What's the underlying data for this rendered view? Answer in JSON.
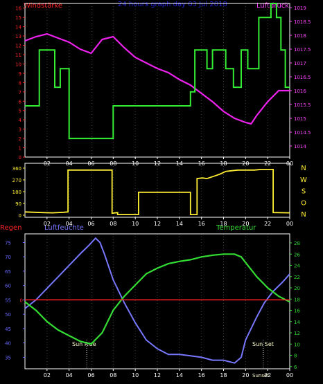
{
  "header": {
    "left_label": "Windstärke",
    "center_title": "24 hours graph day  03 Jul 2018",
    "right_label": "Luftdruck"
  },
  "colors": {
    "wind": "#33ee33",
    "pressure": "#ee22ee",
    "direction": "#ffee33",
    "humidity": "#7777ff",
    "temperature": "#33dd33",
    "rain": "#ff2222",
    "frame": "#ffffff",
    "grid": "#444444",
    "title": "#2222dd",
    "tick_red": "#ff2222",
    "tick_magenta": "#ff44ff",
    "tick_blue": "#6666ff",
    "tick_green": "#33dd33",
    "tick_yellow": "#ffee33",
    "sun_text": "#ffffcc"
  },
  "x_ticks": [
    "02",
    "04",
    "06",
    "08",
    "10",
    "12",
    "14",
    "16",
    "18",
    "20",
    "22",
    "00"
  ],
  "chart_data": [
    {
      "type": "line",
      "panel": "wind_pressure",
      "x_unit": "hour",
      "series": [
        {
          "name": "Windstärke",
          "axis": "left",
          "step": true,
          "x": [
            0,
            1.3,
            1.3,
            2.7,
            2.7,
            3.2,
            3.2,
            4.0,
            4.0,
            8.0,
            8.0,
            15.0,
            15.0,
            15.4,
            15.4,
            16.5,
            16.5,
            17.0,
            17.0,
            18.2,
            18.2,
            18.9,
            18.9,
            19.6,
            19.6,
            20.2,
            20.2,
            21.2,
            21.2,
            22.3,
            22.3,
            22.8,
            22.8,
            23.2,
            23.2,
            23.6,
            23.6,
            24
          ],
          "values": [
            5.5,
            5.5,
            11.5,
            11.5,
            7.5,
            7.5,
            9.5,
            9.5,
            2,
            2,
            5.5,
            5.5,
            7,
            7,
            11.5,
            11.5,
            9.5,
            9.5,
            11.5,
            11.5,
            9.5,
            9.5,
            7.5,
            7.5,
            11.5,
            11.5,
            9.5,
            9.5,
            15,
            15,
            16.5,
            16.5,
            15,
            15,
            11.5,
            11.5,
            7.5,
            7.5
          ],
          "ylim": [
            0,
            16.5
          ]
        },
        {
          "name": "Luftdruck",
          "axis": "right",
          "x": [
            0,
            1,
            2,
            3,
            4,
            5,
            6,
            7,
            8,
            9,
            10,
            11,
            12,
            13,
            14,
            15,
            16,
            17,
            18,
            19,
            20,
            20.5,
            21,
            22,
            23,
            24
          ],
          "values": [
            1017.8,
            1017.95,
            1018.05,
            1017.9,
            1017.75,
            1017.5,
            1017.35,
            1017.85,
            1017.95,
            1017.55,
            1017.2,
            1017.0,
            1016.8,
            1016.65,
            1016.4,
            1016.2,
            1015.9,
            1015.6,
            1015.25,
            1015.0,
            1014.85,
            1014.8,
            1015.1,
            1015.6,
            1016.0,
            1016.0
          ],
          "ylim": [
            1013.6,
            1019.15
          ]
        }
      ],
      "y_ticks_left": [
        0,
        1,
        2,
        3,
        4,
        5,
        6,
        7,
        8,
        9,
        10,
        11,
        12,
        13,
        14,
        15,
        16
      ],
      "y_ticks_right": [
        1014,
        1014.5,
        1015,
        1015.5,
        1016,
        1016.5,
        1017,
        1017.5,
        1018,
        1018.5,
        1019
      ]
    },
    {
      "type": "line",
      "panel": "wind_direction",
      "x_unit": "hour",
      "series": [
        {
          "name": "Windrichtung",
          "step": true,
          "x": [
            0,
            1.5,
            2.5,
            3.5,
            3.9,
            3.9,
            7.9,
            7.9,
            8.4,
            8.4,
            10.3,
            10.3,
            15.0,
            15.0,
            15.6,
            15.6,
            16.1,
            16.5,
            17.2,
            17.7,
            18.2,
            18.7,
            19.3,
            20.2,
            20.8,
            21.4,
            22.5,
            22.5,
            24
          ],
          "values": [
            25,
            20,
            18,
            22,
            25,
            345,
            345,
            15,
            20,
            5,
            5,
            175,
            175,
            5,
            5,
            280,
            285,
            280,
            300,
            315,
            335,
            340,
            345,
            345,
            345,
            350,
            350,
            20,
            18
          ]
        }
      ],
      "ylim": [
        0,
        360
      ],
      "y_ticks": [
        0,
        90,
        180,
        270,
        360
      ],
      "compass_labels": [
        "N",
        "W",
        "S",
        "O",
        "N"
      ]
    },
    {
      "type": "line",
      "panel": "humidity_temperature",
      "x_unit": "hour",
      "series": [
        {
          "name": "Luftfeuchte",
          "axis": "left",
          "x": [
            0,
            1,
            2,
            3,
            4,
            5,
            5.8,
            6.4,
            6.8,
            7.2,
            8,
            9,
            10,
            11,
            12,
            13,
            14,
            15,
            16,
            17,
            18,
            19,
            19.6,
            20,
            21,
            21.7,
            22.5,
            23.3,
            24
          ],
          "values": [
            52,
            55,
            59,
            63,
            67,
            71,
            74,
            76.5,
            75,
            71,
            62,
            54,
            47,
            41,
            38,
            36,
            36,
            35.5,
            35,
            34,
            34,
            33,
            35,
            41,
            49,
            54,
            58,
            61,
            64
          ],
          "ylim": [
            31,
            78
          ]
        },
        {
          "name": "Temperatur",
          "axis": "right",
          "x": [
            0,
            1,
            2,
            3,
            4,
            5,
            6,
            7,
            8,
            9,
            10,
            11,
            12,
            13,
            14,
            15,
            16,
            17,
            18,
            19,
            19.6,
            20,
            21,
            22,
            23,
            24
          ],
          "values": [
            17.5,
            16,
            14,
            12.5,
            11.5,
            10.5,
            10,
            12,
            16,
            18.5,
            20.5,
            22.5,
            23.5,
            24.3,
            24.7,
            25,
            25.5,
            25.8,
            26,
            26,
            25.5,
            24.5,
            22,
            20,
            18.5,
            17.5
          ],
          "ylim": [
            5.6,
            29.6
          ]
        },
        {
          "name": "Regen",
          "axis": "left",
          "x": [
            0,
            24
          ],
          "values": [
            0,
            0
          ]
        }
      ],
      "y_ticks_left": [
        35,
        40,
        45,
        50,
        55,
        60,
        65,
        70,
        75
      ],
      "y_ticks_right": [
        6,
        8,
        10,
        12,
        14,
        16,
        18,
        20,
        22,
        24,
        26,
        28
      ],
      "rain_tick": "0",
      "sunrise_hour": 5.6,
      "sunset_hour": 21.6
    }
  ],
  "labels": {
    "regen": "Regen",
    "luftfeuchte": "Luftfeuchte",
    "temperatur": "Temperatur",
    "sun_rise": "Sun Rise",
    "sun_set": "Sun Set",
    "sunset_small": "Sunset"
  }
}
